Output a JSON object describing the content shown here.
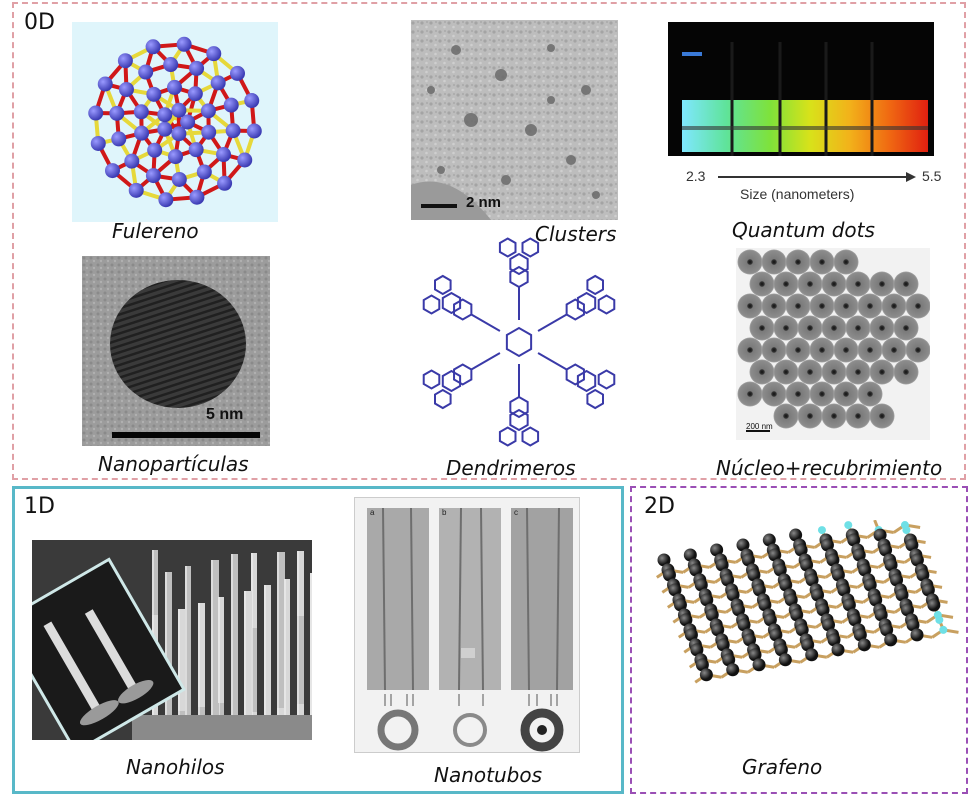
{
  "panels": {
    "zero_d": {
      "title": "0D"
    },
    "one_d": {
      "title": "1D"
    },
    "two_d": {
      "title": "2D"
    }
  },
  "figures": {
    "fulereno": {
      "caption": "Fulereno"
    },
    "clusters": {
      "caption": "Clusters",
      "scale": "2 nm"
    },
    "quantum_dots": {
      "caption": "Quantum dots",
      "axis_start": "2.3",
      "axis_end": "5.5",
      "axis_label": "Size (nanometers)"
    },
    "nanoparticulas": {
      "caption": "Nanopartículas",
      "scale": "5 nm"
    },
    "dendrimeros": {
      "caption": "Dendrimeros"
    },
    "nucleo": {
      "caption": "Núcleo+recubrimiento",
      "scale": "200 nm"
    },
    "nanohilos": {
      "caption": "Nanohilos"
    },
    "nanotubos": {
      "caption": "Nanotubos",
      "sub_labels": [
        "a",
        "b",
        "c"
      ]
    },
    "grafeno": {
      "caption": "Grafeno"
    }
  },
  "colors": {
    "border_0d": "#e0a0a6",
    "border_1d": "#58b8c8",
    "border_2d": "#9a4fb5",
    "fullerene_atom": "#3b3bb3",
    "dendrimer": "#3a3aa8"
  }
}
